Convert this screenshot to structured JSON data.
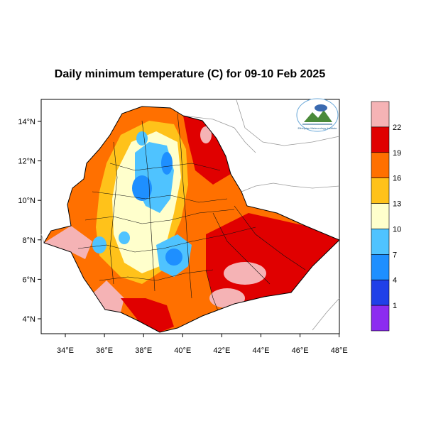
{
  "title": "Daily minimum temperature (C) for 09-10 Feb 2025",
  "map": {
    "lon_range": [
      33,
      48.2
    ],
    "lat_range": [
      3.2,
      15
    ],
    "x_ticks": [
      "34°E",
      "36°E",
      "38°E",
      "40°E",
      "42°E",
      "44°E",
      "46°E",
      "48°E"
    ],
    "y_ticks": [
      "14°N",
      "12°N",
      "10°N",
      "8°N",
      "6°N",
      "4°N"
    ]
  },
  "colorbar": {
    "colors": [
      "#f5b3b5",
      "#e00000",
      "#ff7000",
      "#ffc21a",
      "#ffffcc",
      "#4fc3ff",
      "#1e8fff",
      "#2040e8",
      "#8c2cf0"
    ],
    "labels": [
      "22",
      "19",
      "16",
      "13",
      "10",
      "7",
      "4",
      "1"
    ]
  },
  "logo": {
    "caption": "Ethiopian Meteorology Institute"
  }
}
